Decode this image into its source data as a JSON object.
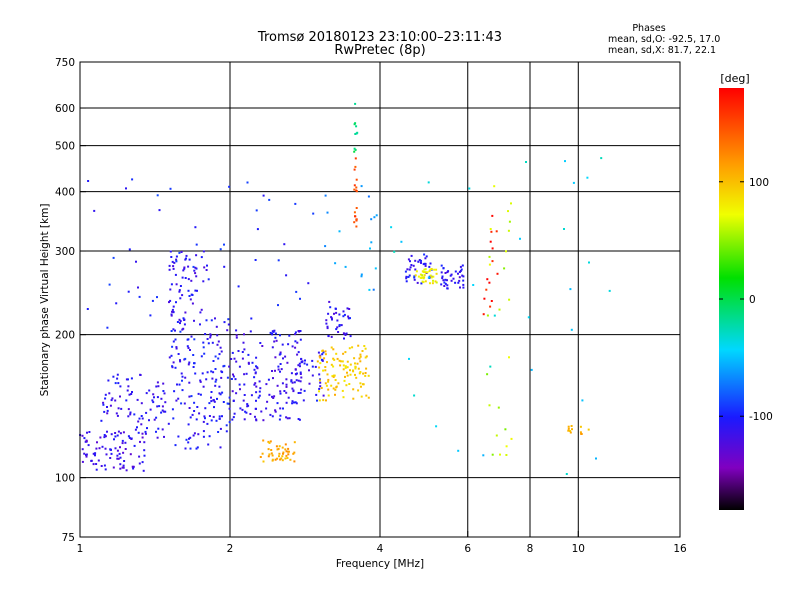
{
  "title_line1": "Tromsø 20180123 23:10:00–23:11:43",
  "title_line2": "RwPretec (8p)",
  "stats": {
    "heading": "Phases",
    "line1": "mean, sd,O: -92.5, 17.0",
    "line2": "mean, sd,X:  81.7, 22.1"
  },
  "colorbar": {
    "label": "[deg]",
    "ticks": [
      {
        "label": "100",
        "value": 100
      },
      {
        "label": "0",
        "value": 0
      },
      {
        "label": "-100",
        "value": -100
      }
    ],
    "range": [
      -180,
      180
    ]
  },
  "chart_data": {
    "type": "scatter",
    "title": "Tromsø 20180123 23:10:00–23:11:43",
    "subtitle": "RwPretec (8p)",
    "xlabel": "Frequency [MHz]",
    "ylabel": "Stationary phase Virtual Height [km]",
    "xscale": "log",
    "yscale": "log",
    "xlim": [
      1,
      16
    ],
    "ylim": [
      75,
      750
    ],
    "x_ticks": [
      {
        "label": "1",
        "value": 1
      },
      {
        "label": "2",
        "value": 2
      },
      {
        "label": "4",
        "value": 4
      },
      {
        "label": "6",
        "value": 6
      },
      {
        "label": "8",
        "value": 8
      },
      {
        "label": "10",
        "value": 10
      },
      {
        "label": "16",
        "value": 16
      }
    ],
    "y_ticks": [
      {
        "label": "75",
        "value": 75
      },
      {
        "label": "100",
        "value": 100
      },
      {
        "label": "200",
        "value": 200
      },
      {
        "label": "300",
        "value": 300
      },
      {
        "label": "400",
        "value": 400
      },
      {
        "label": "500",
        "value": 500
      },
      {
        "label": "600",
        "value": 600
      },
      {
        "label": "750",
        "value": 750
      }
    ],
    "x_gridlines": [
      2,
      4,
      6,
      8,
      10
    ],
    "y_gridlines": [
      100,
      200,
      300,
      400,
      500,
      600
    ],
    "clusters": [
      {
        "x": [
          1.0,
          1.35
        ],
        "y": [
          103,
          125
        ],
        "phase": -115,
        "count": 90
      },
      {
        "x": [
          1.1,
          1.5
        ],
        "y": [
          120,
          165
        ],
        "phase": -110,
        "count": 90
      },
      {
        "x": [
          1.5,
          2.0
        ],
        "y": [
          115,
          220
        ],
        "phase": -105,
        "count": 170
      },
      {
        "x": [
          1.5,
          1.8
        ],
        "y": [
          210,
          300
        ],
        "phase": -110,
        "count": 70
      },
      {
        "x": [
          2.0,
          2.8
        ],
        "y": [
          130,
          205
        ],
        "phase": -112,
        "count": 170
      },
      {
        "x": [
          2.6,
          3.1
        ],
        "y": [
          140,
          185
        ],
        "phase": -108,
        "count": 40
      },
      {
        "x": [
          2.3,
          2.7
        ],
        "y": [
          108,
          120
        ],
        "phase": 110,
        "count": 45
      },
      {
        "x": [
          3.0,
          3.8
        ],
        "y": [
          145,
          190
        ],
        "phase": 95,
        "count": 110
      },
      {
        "x": [
          3.1,
          3.5
        ],
        "y": [
          195,
          235
        ],
        "phase": -110,
        "count": 40
      },
      {
        "x": [
          4.5,
          5.1
        ],
        "y": [
          255,
          295
        ],
        "phase": -105,
        "count": 40
      },
      {
        "x": [
          4.7,
          5.2
        ],
        "y": [
          255,
          275
        ],
        "phase": 75,
        "count": 35
      },
      {
        "x": [
          5.3,
          5.9
        ],
        "y": [
          250,
          280
        ],
        "phase": -110,
        "count": 40
      },
      {
        "x": [
          1.0,
          3.0
        ],
        "y": [
          200,
          450
        ],
        "phase": -100,
        "count": 50
      },
      {
        "x": [
          3.0,
          4.0
        ],
        "y": [
          240,
          420
        ],
        "phase": -60,
        "count": 18
      },
      {
        "x": [
          3.55,
          3.6
        ],
        "y": [
          330,
          470
        ],
        "phase": 150,
        "count": 18
      },
      {
        "x": [
          3.55,
          3.6
        ],
        "y": [
          480,
          620
        ],
        "phase": -10,
        "count": 10
      },
      {
        "x": [
          6.5,
          7.4
        ],
        "y": [
          110,
          420
        ],
        "phase": 60,
        "count": 24
      },
      {
        "x": [
          6.4,
          7.0
        ],
        "y": [
          220,
          360
        ],
        "phase": 170,
        "count": 14
      },
      {
        "x": [
          9.5,
          10.5
        ],
        "y": [
          123,
          130
        ],
        "phase": 105,
        "count": 12
      },
      {
        "x": [
          4.0,
          12.0
        ],
        "y": [
          100,
          650
        ],
        "phase": -40,
        "count": 30
      }
    ]
  }
}
